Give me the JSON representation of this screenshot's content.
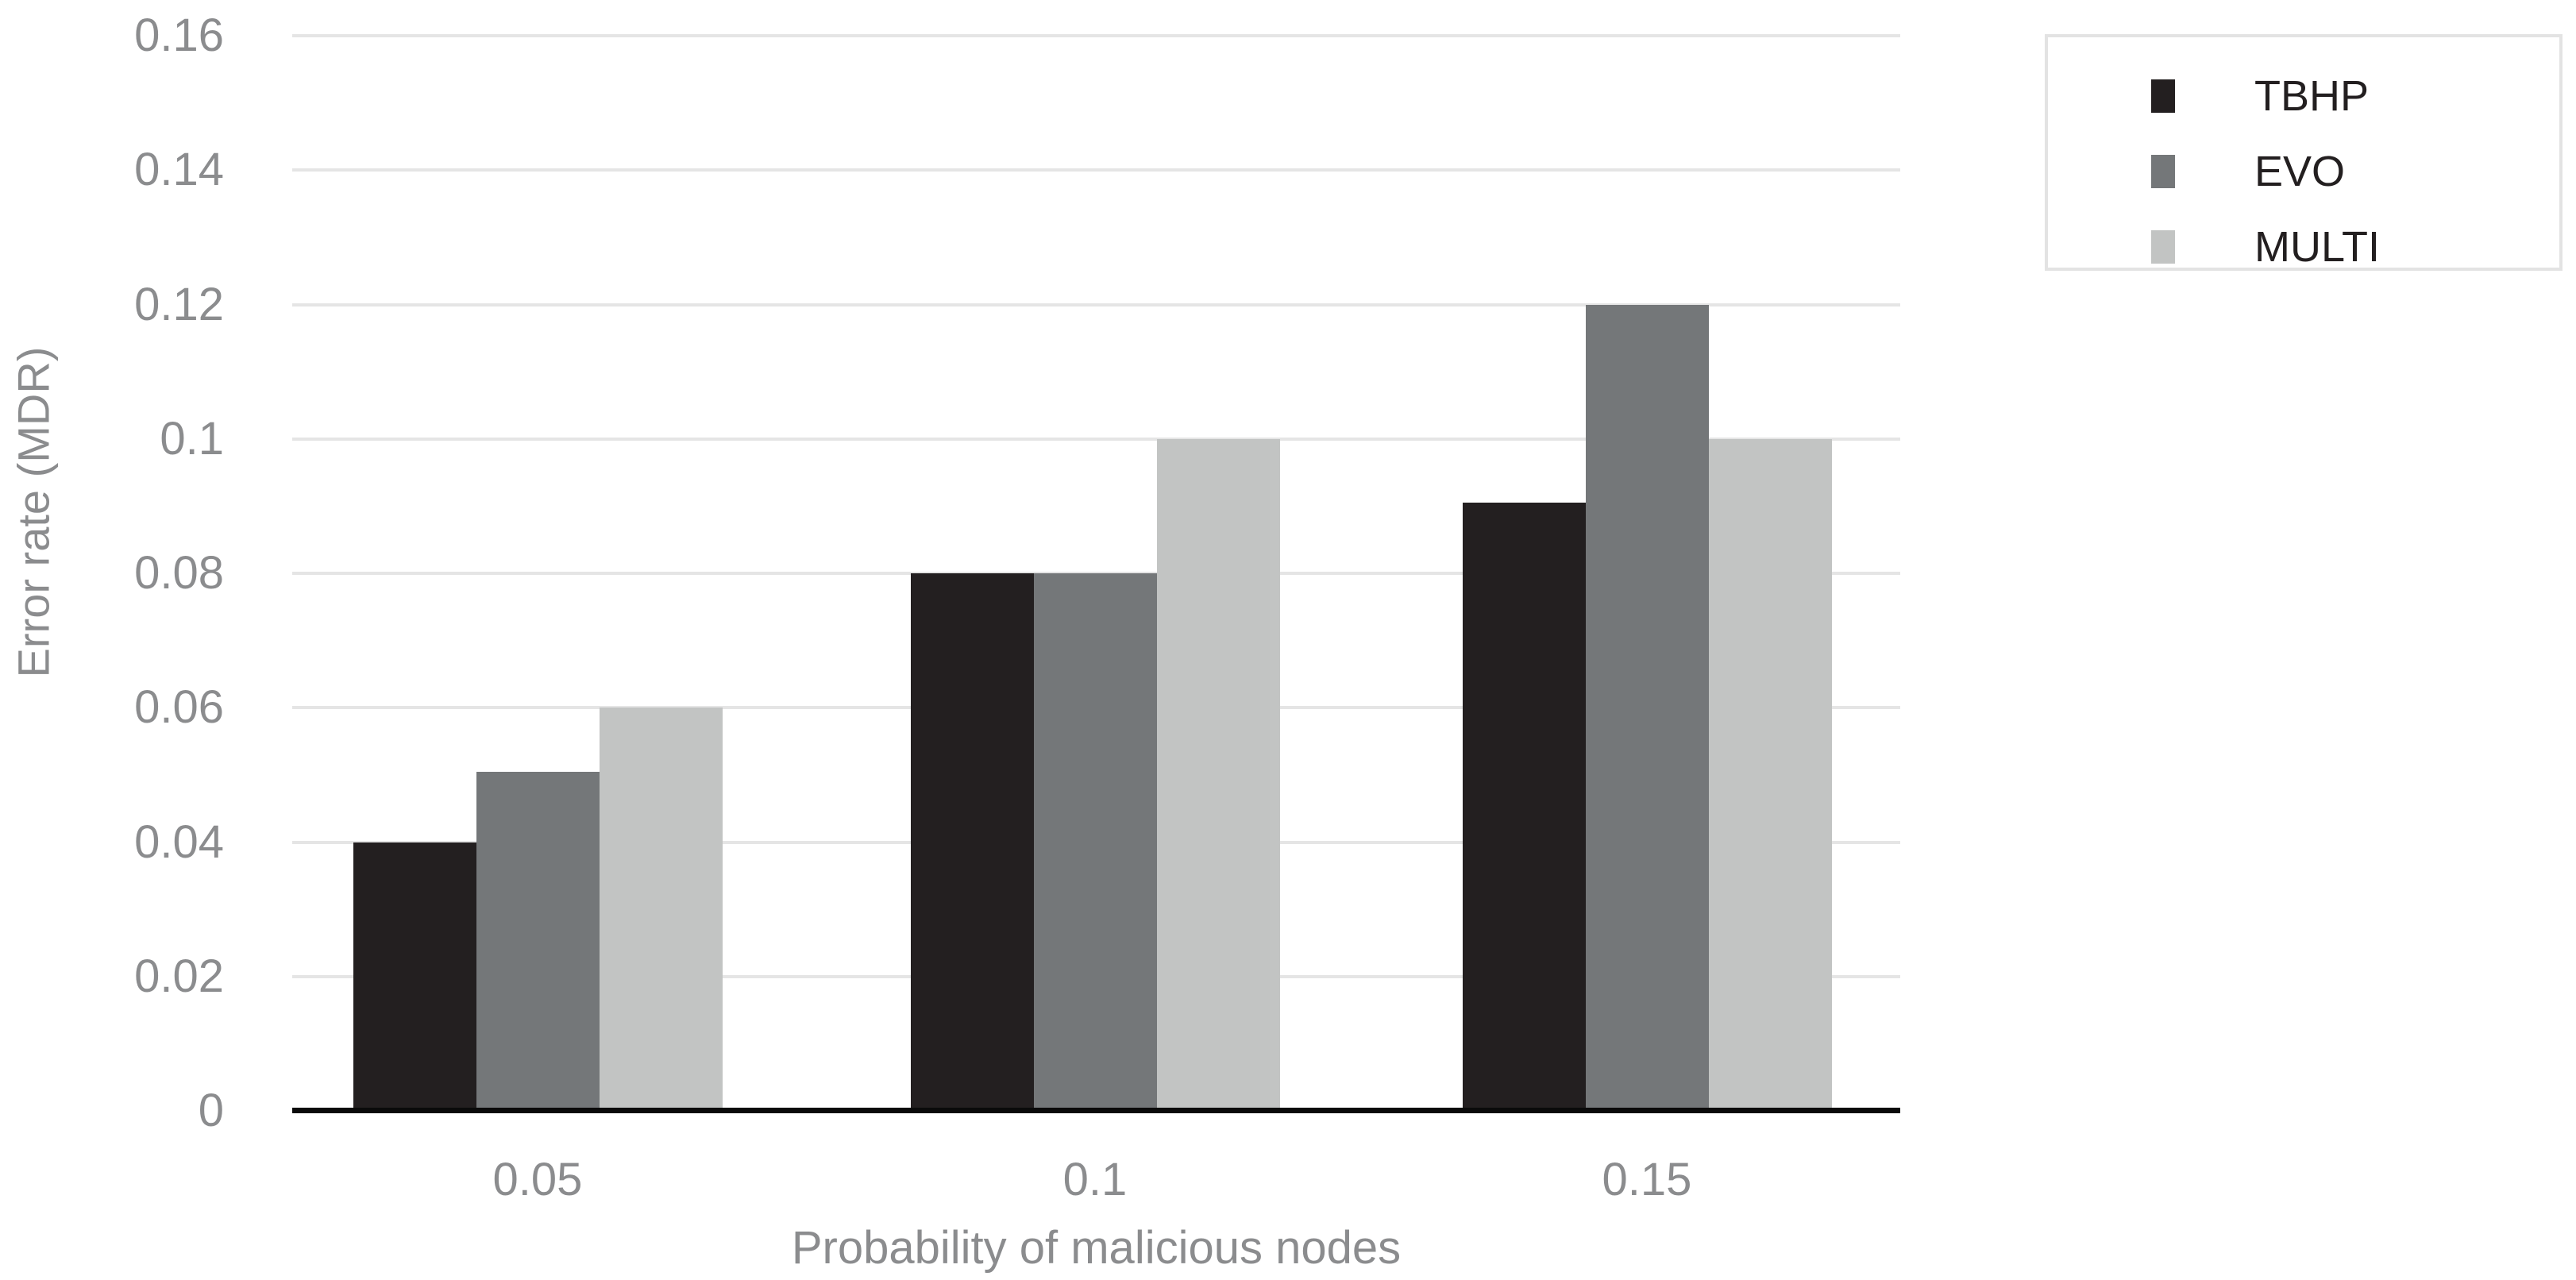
{
  "chart_data": {
    "type": "bar",
    "title": "",
    "xlabel": "Probability of malicious nodes",
    "ylabel": "Error rate (MDR)",
    "categories": [
      "0.05",
      "0.1",
      "0.15"
    ],
    "series": [
      {
        "name": "TBHP",
        "color": "#231f20",
        "values": [
          0.04,
          0.08,
          0.0905
        ]
      },
      {
        "name": "EVO",
        "color": "#747779",
        "values": [
          0.0505,
          0.08,
          0.12
        ]
      },
      {
        "name": "MULTI",
        "color": "#c2c4c3",
        "values": [
          0.06,
          0.1,
          0.1
        ]
      }
    ],
    "ylim": [
      0,
      0.16
    ],
    "yticks": [
      {
        "v": 0,
        "label": "0"
      },
      {
        "v": 0.02,
        "label": "0.02"
      },
      {
        "v": 0.04,
        "label": "0.04"
      },
      {
        "v": 0.06,
        "label": "0.06"
      },
      {
        "v": 0.08,
        "label": "0.08"
      },
      {
        "v": 0.1,
        "label": "0.1"
      },
      {
        "v": 0.12,
        "label": "0.12"
      },
      {
        "v": 0.14,
        "label": "0.14"
      },
      {
        "v": 0.16,
        "label": "0.16"
      }
    ],
    "grid": true,
    "legend_position": "top-right",
    "colors": {
      "axis_line": "#0a0a0a",
      "gridline": "#e5e5e5",
      "tick_text": "#8b8c8e",
      "legend_text": "#231f20",
      "legend_border": "#e3e3e3",
      "background": "#ffffff"
    }
  }
}
